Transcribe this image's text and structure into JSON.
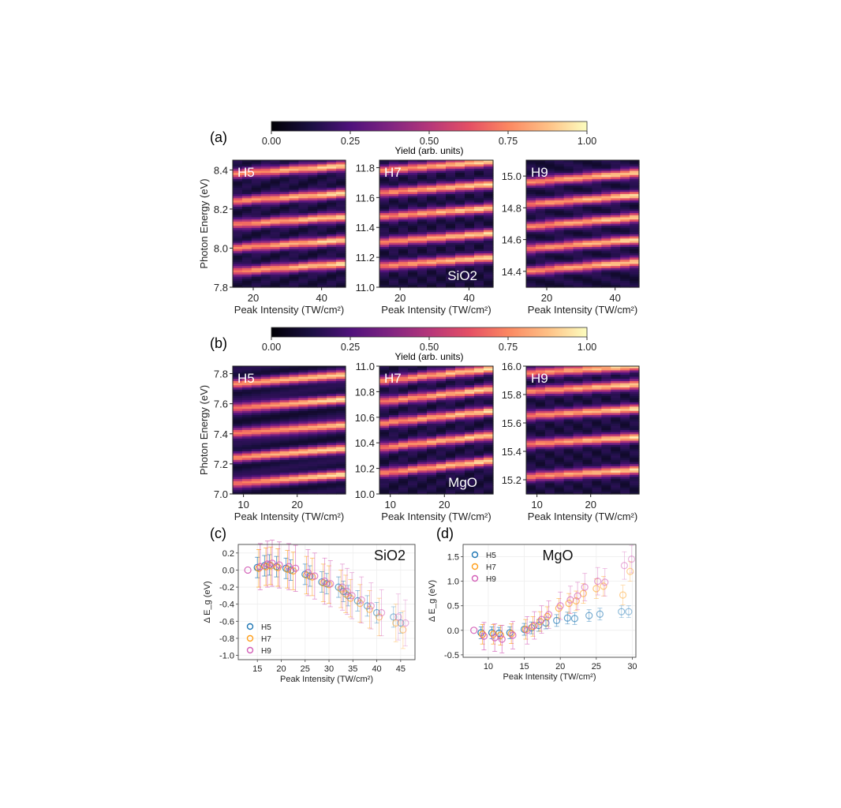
{
  "figure": {
    "panel_labels": {
      "a": "(a)",
      "b": "(b)",
      "c": "(c)",
      "d": "(d)"
    },
    "colorbar": {
      "label": "Yield (arb. units)",
      "ticks": [
        "0.00",
        "0.25",
        "0.50",
        "0.75",
        "1.00"
      ],
      "colormap": "magma"
    }
  },
  "chart_data": [
    {
      "panel": "(a)",
      "type": "heatmap",
      "material": "SiO2",
      "subplots": [
        {
          "tag": "H5",
          "xlabel": "Peak Intensity (TW/cm²)",
          "ylabel": "Photon Energy (eV)",
          "xlim": [
            14,
            47
          ],
          "ylim": [
            7.8,
            8.45
          ],
          "xticks": [
            "20",
            "40"
          ],
          "yticks": [
            "7.8",
            "8.0",
            "8.2",
            "8.4"
          ],
          "bright_fringes_at_low_intensity_eV": [
            7.88,
            8.0,
            8.12,
            8.24,
            8.38
          ],
          "fringe_shift_eV": 0.04
        },
        {
          "tag": "H7",
          "sample_label": "SiO2",
          "xlabel": "Peak Intensity (TW/cm²)",
          "ylabel": "",
          "xlim": [
            14,
            47
          ],
          "ylim": [
            11.0,
            11.85
          ],
          "xticks": [
            "20",
            "40"
          ],
          "yticks": [
            "11.0",
            "11.2",
            "11.4",
            "11.6",
            "11.8"
          ],
          "bright_fringes_at_low_intensity_eV": [
            11.14,
            11.3,
            11.47,
            11.63,
            11.78
          ],
          "fringe_shift_eV": 0.06
        },
        {
          "tag": "H9",
          "xlabel": "Peak Intensity (TW/cm²)",
          "ylabel": "",
          "xlim": [
            14,
            47
          ],
          "ylim": [
            14.3,
            15.1
          ],
          "xticks": [
            "20",
            "40"
          ],
          "yticks": [
            "14.4",
            "14.6",
            "14.8",
            "15.0"
          ],
          "bright_fringes_at_low_intensity_eV": [
            14.4,
            14.54,
            14.68,
            14.82,
            14.96
          ],
          "fringe_shift_eV": 0.06
        }
      ]
    },
    {
      "panel": "(b)",
      "type": "heatmap",
      "material": "MgO",
      "subplots": [
        {
          "tag": "H5",
          "xlabel": "Peak Intensity (TW/cm²)",
          "ylabel": "Photon Energy (eV)",
          "xlim": [
            8,
            29
          ],
          "ylim": [
            7.0,
            7.85
          ],
          "xticks": [
            "10",
            "20"
          ],
          "yticks": [
            "7.0",
            "7.2",
            "7.4",
            "7.6",
            "7.8"
          ],
          "bright_fringes_at_low_intensity_eV": [
            7.07,
            7.24,
            7.4,
            7.57,
            7.73
          ],
          "fringe_shift_eV": 0.06
        },
        {
          "tag": "H7",
          "sample_label": "MgO",
          "xlabel": "Peak Intensity (TW/cm²)",
          "ylabel": "",
          "xlim": [
            8,
            29
          ],
          "ylim": [
            10.0,
            11.0
          ],
          "xticks": [
            "10",
            "20"
          ],
          "yticks": [
            "10.0",
            "10.2",
            "10.4",
            "10.6",
            "10.8",
            "11.0"
          ],
          "bright_fringes_at_low_intensity_eV": [
            10.16,
            10.36,
            10.55,
            10.72,
            10.88
          ],
          "fringe_shift_eV": 0.1
        },
        {
          "tag": "H9",
          "xlabel": "Peak Intensity (TW/cm²)",
          "ylabel": "",
          "xlim": [
            8,
            29
          ],
          "ylim": [
            15.1,
            16.0
          ],
          "xticks": [
            "10",
            "20"
          ],
          "yticks": [
            "15.2",
            "15.4",
            "15.6",
            "15.8",
            "16.0"
          ],
          "bright_fringes_at_low_intensity_eV": [
            15.22,
            15.45,
            15.65,
            15.82,
            15.95
          ],
          "fringe_shift_eV": 0.05
        }
      ]
    },
    {
      "panel": "(c)",
      "type": "scatter",
      "title": "SiO2",
      "xlabel": "Peak Intensity (TW/cm²)",
      "ylabel": "Δ E_g (eV)",
      "xlim": [
        11,
        48
      ],
      "ylim": [
        -1.05,
        0.3
      ],
      "xticks": [
        15,
        20,
        25,
        30,
        35,
        40,
        45
      ],
      "yticks": [
        -1.0,
        -0.8,
        -0.6,
        -0.4,
        -0.2,
        0.0,
        0.2
      ],
      "legend_position": "lower-left",
      "series": [
        {
          "name": "H5",
          "color": "#1f77b4",
          "x": [
            15,
            16.5,
            17.5,
            19,
            21,
            22,
            25,
            26,
            28.5,
            29.5,
            32,
            33,
            34,
            36,
            38,
            40,
            43.5,
            45
          ],
          "y": [
            0.03,
            0.05,
            0.06,
            0.04,
            0.02,
            0.0,
            -0.05,
            -0.07,
            -0.14,
            -0.16,
            -0.2,
            -0.25,
            -0.3,
            -0.36,
            -0.42,
            -0.5,
            -0.55,
            -0.62
          ],
          "err": [
            0.12,
            0.12,
            0.12,
            0.12,
            0.12,
            0.12,
            0.12,
            0.12,
            0.12,
            0.12,
            0.12,
            0.12,
            0.12,
            0.12,
            0.12,
            0.12,
            0.12,
            0.12
          ]
        },
        {
          "name": "H7",
          "color": "#ff9f1c",
          "x": [
            15.3,
            16.8,
            17.8,
            19.3,
            21.3,
            22.5,
            25.3,
            26.5,
            28.8,
            30,
            32.5,
            33.5,
            34.5,
            36.5,
            38.5,
            40.5,
            44,
            45.5
          ],
          "y": [
            0.02,
            0.04,
            0.05,
            0.03,
            0.01,
            -0.01,
            -0.06,
            -0.08,
            -0.15,
            -0.17,
            -0.22,
            -0.28,
            -0.33,
            -0.39,
            -0.46,
            -0.55,
            -0.62,
            -0.7
          ],
          "err": [
            0.22,
            0.22,
            0.22,
            0.22,
            0.22,
            0.22,
            0.22,
            0.22,
            0.22,
            0.22,
            0.22,
            0.22,
            0.22,
            0.22,
            0.22,
            0.22,
            0.22,
            0.22
          ]
        },
        {
          "name": "H9",
          "color": "#d35fb7",
          "x": [
            13,
            15.6,
            17.1,
            18.1,
            19.6,
            21.6,
            23,
            25.6,
            27,
            29.1,
            30.3,
            32.8,
            33.8,
            34.8,
            36.8,
            38.8,
            41,
            44.5,
            46
          ],
          "y": [
            0.0,
            0.04,
            0.07,
            0.08,
            0.06,
            0.04,
            0.02,
            -0.03,
            -0.07,
            -0.13,
            -0.16,
            -0.2,
            -0.25,
            -0.3,
            -0.35,
            -0.42,
            -0.5,
            -0.55,
            -0.62
          ],
          "err": [
            0.0,
            0.27,
            0.27,
            0.27,
            0.27,
            0.27,
            0.27,
            0.27,
            0.27,
            0.27,
            0.27,
            0.27,
            0.27,
            0.27,
            0.27,
            0.27,
            0.27,
            0.27,
            0.27
          ]
        }
      ]
    },
    {
      "panel": "(d)",
      "type": "scatter",
      "title": "MgO",
      "xlabel": "Peak Intensity (TW/cm²)",
      "ylabel": "Δ E_g (eV)",
      "xlim": [
        6.5,
        30.5
      ],
      "ylim": [
        -0.55,
        1.75
      ],
      "xticks": [
        10,
        15,
        20,
        25,
        30
      ],
      "yticks": [
        -0.5,
        0.0,
        0.5,
        1.0,
        1.5
      ],
      "legend_position": "upper-left",
      "series": [
        {
          "name": "H5",
          "color": "#1f77b4",
          "x": [
            9,
            10.5,
            11.5,
            13,
            15,
            16,
            17,
            18,
            19.5,
            21,
            22,
            24,
            25.5,
            28.5,
            29.5
          ],
          "y": [
            -0.05,
            -0.05,
            -0.06,
            -0.05,
            0.02,
            0.05,
            0.1,
            0.15,
            0.2,
            0.25,
            0.24,
            0.3,
            0.33,
            0.38,
            0.38
          ],
          "err": [
            0.12,
            0.12,
            0.12,
            0.12,
            0.12,
            0.12,
            0.12,
            0.12,
            0.12,
            0.12,
            0.12,
            0.12,
            0.12,
            0.12,
            0.12
          ]
        },
        {
          "name": "H7",
          "color": "#ff9f1c",
          "x": [
            9.2,
            10.7,
            11.7,
            13.2,
            15.2,
            16.2,
            17.2,
            18.2,
            19.8,
            21.2,
            22.2,
            23.2,
            25,
            26,
            28.7,
            29.7
          ],
          "y": [
            -0.08,
            -0.08,
            -0.1,
            -0.07,
            0.02,
            0.08,
            0.18,
            0.28,
            0.45,
            0.55,
            0.6,
            0.75,
            0.85,
            0.9,
            0.72,
            1.2
          ],
          "err": [
            0.2,
            0.2,
            0.2,
            0.2,
            0.2,
            0.2,
            0.2,
            0.2,
            0.2,
            0.2,
            0.2,
            0.2,
            0.2,
            0.2,
            0.2,
            0.2
          ]
        },
        {
          "name": "H9",
          "color": "#d35fb7",
          "x": [
            8,
            9.4,
            10.9,
            11.9,
            13.4,
            15.4,
            16.4,
            17.4,
            18.4,
            20,
            21.4,
            22.4,
            23.4,
            25.2,
            26.2,
            28.9,
            29.9
          ],
          "y": [
            0.0,
            -0.12,
            -0.15,
            -0.18,
            -0.1,
            0.0,
            0.1,
            0.22,
            0.32,
            0.5,
            0.62,
            0.7,
            0.88,
            1.0,
            0.98,
            1.32,
            1.45
          ],
          "err": [
            0.0,
            0.28,
            0.28,
            0.28,
            0.28,
            0.28,
            0.28,
            0.28,
            0.28,
            0.28,
            0.28,
            0.28,
            0.28,
            0.28,
            0.28,
            0.28,
            0.28
          ]
        }
      ]
    }
  ]
}
